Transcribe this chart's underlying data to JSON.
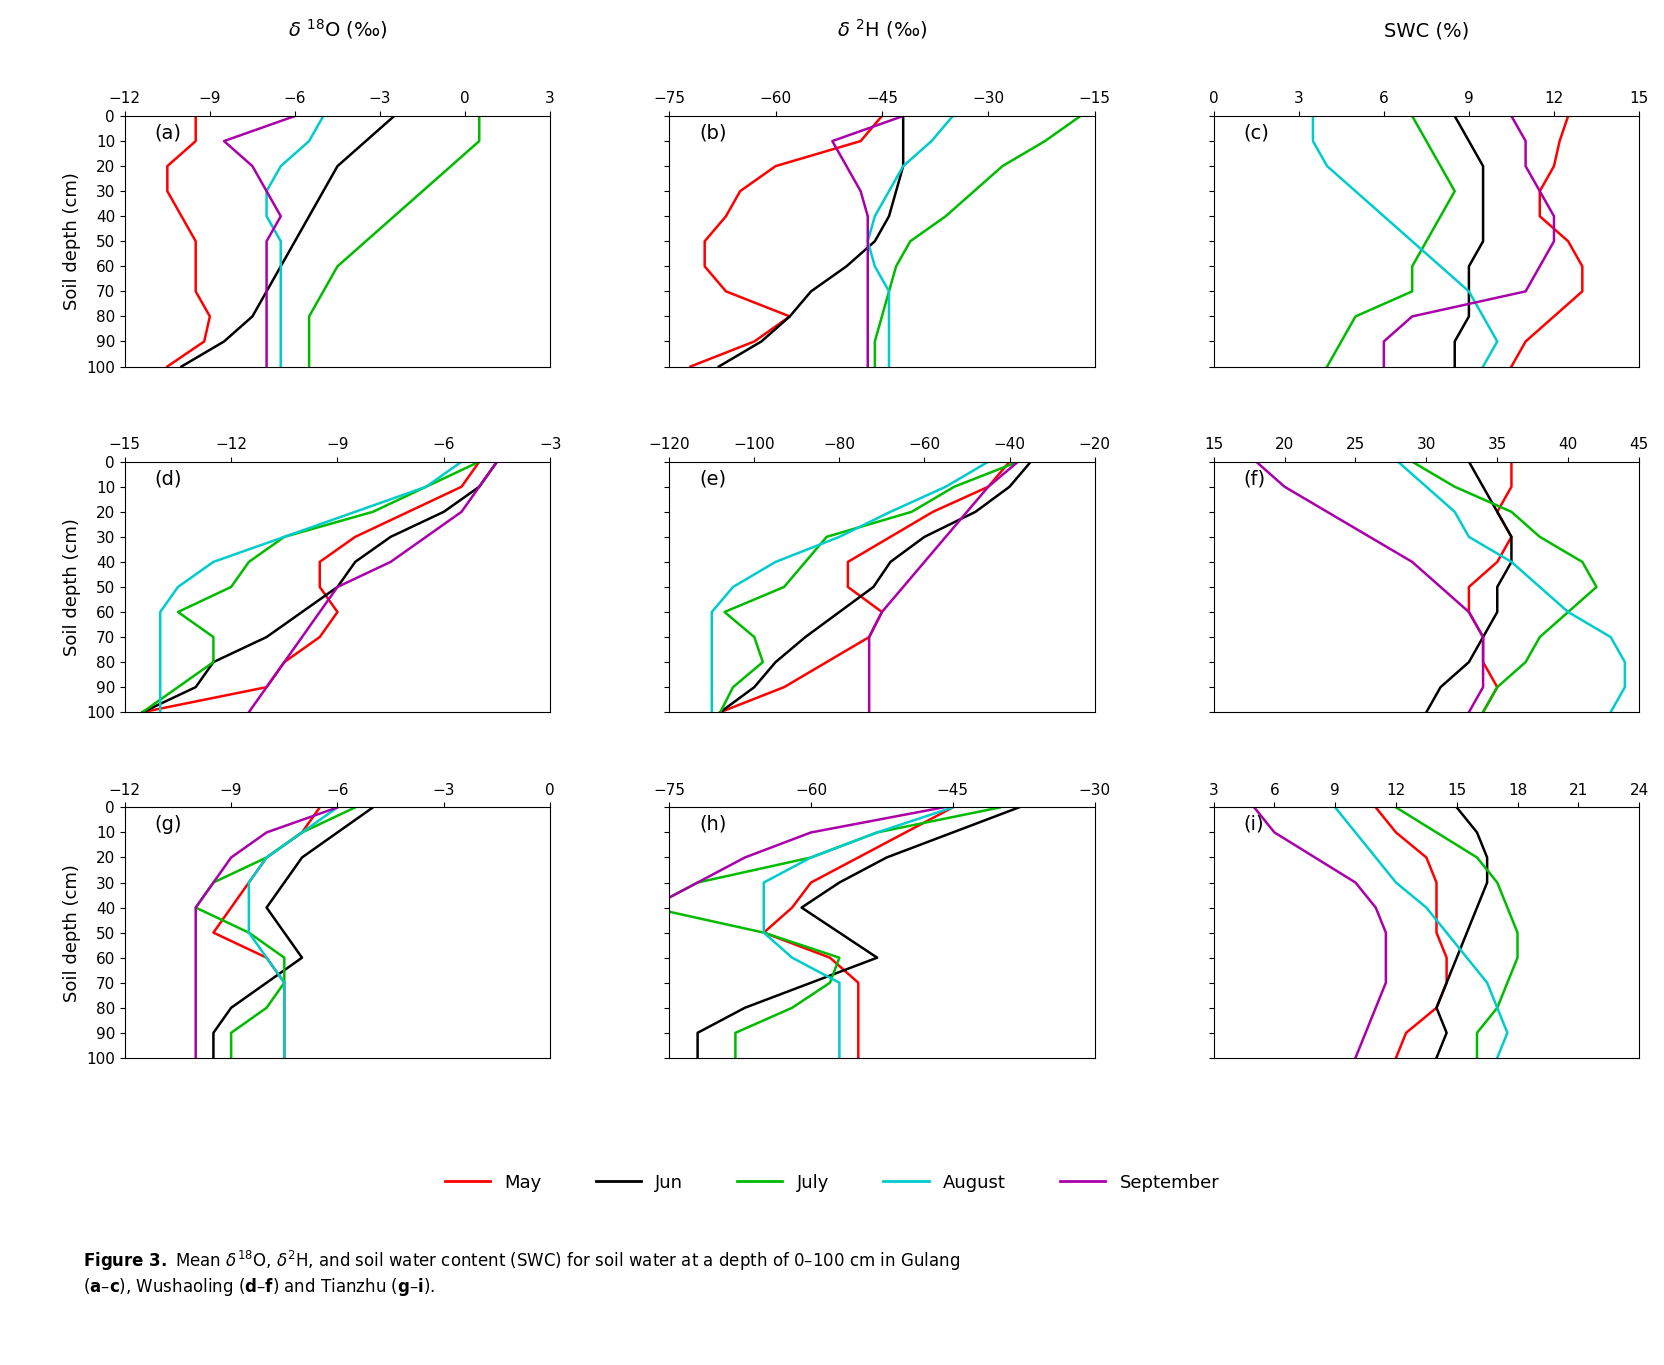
{
  "depths": [
    0,
    10,
    20,
    30,
    40,
    50,
    60,
    70,
    80,
    90,
    100
  ],
  "panel_labels": [
    "(a)",
    "(b)",
    "(c)",
    "(d)",
    "(e)",
    "(f)",
    "(g)",
    "(h)",
    "(i)"
  ],
  "colors": {
    "May": "#ff0000",
    "Jun": "#000000",
    "July": "#00bb00",
    "August": "#00cccc",
    "September": "#aa00aa"
  },
  "legend_labels": [
    "May",
    "Jun",
    "July",
    "August",
    "September"
  ],
  "xlims": [
    [
      [
        -12,
        3
      ],
      [
        -75,
        -15
      ],
      [
        0,
        15
      ]
    ],
    [
      [
        -15,
        -3
      ],
      [
        -120,
        -20
      ],
      [
        15,
        45
      ]
    ],
    [
      [
        -12,
        0
      ],
      [
        -75,
        -30
      ],
      [
        3,
        24
      ]
    ]
  ],
  "xticks": [
    [
      [
        -12,
        -9,
        -6,
        -3,
        0,
        3
      ],
      [
        -75,
        -60,
        -45,
        -30,
        -15
      ],
      [
        0,
        3,
        6,
        9,
        12,
        15
      ]
    ],
    [
      [
        -15,
        -12,
        -9,
        -6,
        -3
      ],
      [
        -120,
        -100,
        -80,
        -60,
        -40,
        -20
      ],
      [
        15,
        20,
        25,
        30,
        35,
        40,
        45
      ]
    ],
    [
      [
        -12,
        -9,
        -6,
        -3,
        0
      ],
      [
        -75,
        -60,
        -45,
        -30
      ],
      [
        3,
        6,
        9,
        12,
        15,
        18,
        21,
        24
      ]
    ]
  ],
  "col_titles": [
    "$\\delta$ $^{18}$O (\\u2030)",
    "$\\delta$ $^{2}$H (\\u2030)",
    "SWC (%)"
  ],
  "data": {
    "a": {
      "May": [
        -9.5,
        -9.5,
        -10.5,
        -10.5,
        -10.0,
        -9.5,
        -9.5,
        -9.5,
        -9.0,
        -9.2,
        -10.5
      ],
      "Jun": [
        -2.5,
        -3.5,
        -4.5,
        -5.0,
        -5.5,
        -6.0,
        -6.5,
        -7.0,
        -7.5,
        -8.5,
        -10.0
      ],
      "July": [
        0.5,
        0.5,
        -0.5,
        -1.5,
        -2.5,
        -3.5,
        -4.5,
        -5.0,
        -5.5,
        -5.5,
        -5.5
      ],
      "August": [
        -5.0,
        -5.5,
        -6.5,
        -7.0,
        -7.0,
        -6.5,
        -6.5,
        -6.5,
        -6.5,
        -6.5,
        -6.5
      ],
      "September": [
        -6.0,
        -8.5,
        -7.5,
        -7.0,
        -6.5,
        -7.0,
        -7.0,
        -7.0,
        -7.0,
        -7.0,
        -7.0
      ]
    },
    "b": {
      "May": [
        -45,
        -48,
        -60,
        -65,
        -67,
        -70,
        -70,
        -67,
        -58,
        -63,
        -72
      ],
      "Jun": [
        -42,
        -42,
        -42,
        -43,
        -44,
        -46,
        -50,
        -55,
        -58,
        -62,
        -68
      ],
      "July": [
        -17,
        -22,
        -28,
        -32,
        -36,
        -41,
        -43,
        -44,
        -45,
        -46,
        -46
      ],
      "August": [
        -35,
        -38,
        -42,
        -44,
        -46,
        -47,
        -46,
        -44,
        -44,
        -44,
        -44
      ],
      "September": [
        -42,
        -52,
        -50,
        -48,
        -47,
        -47,
        -47,
        -47,
        -47,
        -47,
        -47
      ]
    },
    "c": {
      "May": [
        12.5,
        12.2,
        12.0,
        11.5,
        11.5,
        12.5,
        13.0,
        13.0,
        12.0,
        11.0,
        10.5
      ],
      "Jun": [
        8.5,
        9.0,
        9.5,
        9.5,
        9.5,
        9.5,
        9.0,
        9.0,
        9.0,
        8.5,
        8.5
      ],
      "July": [
        7.0,
        7.5,
        8.0,
        8.5,
        8.0,
        7.5,
        7.0,
        7.0,
        5.0,
        4.5,
        4.0
      ],
      "August": [
        3.5,
        3.5,
        4.0,
        5.0,
        6.0,
        7.0,
        8.0,
        9.0,
        9.5,
        10.0,
        9.5
      ],
      "September": [
        10.5,
        11.0,
        11.0,
        11.5,
        12.0,
        12.0,
        11.5,
        11.0,
        7.0,
        6.0,
        6.0
      ]
    },
    "d": {
      "May": [
        -5.0,
        -5.5,
        -7.0,
        -8.5,
        -9.5,
        -9.5,
        -9.0,
        -9.5,
        -10.5,
        -11.0,
        -14.5
      ],
      "Jun": [
        -4.5,
        -5.0,
        -6.0,
        -7.5,
        -8.5,
        -9.0,
        -10.0,
        -11.0,
        -12.5,
        -13.0,
        -14.5
      ],
      "July": [
        -5.0,
        -6.5,
        -8.0,
        -10.5,
        -11.5,
        -12.0,
        -13.5,
        -12.5,
        -12.5,
        -13.5,
        -14.5
      ],
      "August": [
        -5.5,
        -6.5,
        -8.5,
        -10.5,
        -12.5,
        -13.5,
        -14.0,
        -14.0,
        -14.0,
        -14.0,
        -14.0
      ],
      "September": [
        -4.5,
        -5.0,
        -5.5,
        -6.5,
        -7.5,
        -9.0,
        -9.5,
        -10.0,
        -10.5,
        -11.0,
        -11.5
      ]
    },
    "e": {
      "May": [
        -40,
        -45,
        -58,
        -68,
        -78,
        -78,
        -70,
        -73,
        -83,
        -93,
        -108
      ],
      "Jun": [
        -35,
        -40,
        -48,
        -60,
        -68,
        -72,
        -80,
        -88,
        -95,
        -100,
        -108
      ],
      "July": [
        -38,
        -53,
        -63,
        -83,
        -88,
        -93,
        -107,
        -100,
        -98,
        -105,
        -108
      ],
      "August": [
        -45,
        -55,
        -68,
        -80,
        -95,
        -105,
        -110,
        -110,
        -110,
        -110,
        -110
      ],
      "September": [
        -38,
        -45,
        -50,
        -55,
        -60,
        -65,
        -70,
        -73,
        -73,
        -73,
        -73
      ]
    },
    "f": {
      "May": [
        36,
        36,
        35,
        36,
        35,
        33,
        33,
        34,
        34,
        35,
        34
      ],
      "Jun": [
        33,
        34,
        35,
        36,
        36,
        35,
        35,
        34,
        33,
        31,
        30
      ],
      "July": [
        29,
        32,
        36,
        38,
        41,
        42,
        40,
        38,
        37,
        35,
        34
      ],
      "August": [
        28,
        30,
        32,
        33,
        36,
        38,
        40,
        43,
        44,
        44,
        43
      ],
      "September": [
        18,
        20,
        23,
        26,
        29,
        31,
        33,
        34,
        34,
        34,
        33
      ]
    },
    "g": {
      "May": [
        -6.5,
        -7.0,
        -8.0,
        -8.5,
        -9.0,
        -9.5,
        -8.0,
        -7.5,
        -7.5,
        -7.5,
        -7.5
      ],
      "Jun": [
        -5.0,
        -6.0,
        -7.0,
        -7.5,
        -8.0,
        -7.5,
        -7.0,
        -8.0,
        -9.0,
        -9.5,
        -9.5
      ],
      "July": [
        -5.5,
        -7.0,
        -8.0,
        -9.5,
        -10.0,
        -8.5,
        -7.5,
        -7.5,
        -8.0,
        -9.0,
        -9.0
      ],
      "August": [
        -6.0,
        -7.0,
        -8.0,
        -8.5,
        -8.5,
        -8.5,
        -8.0,
        -7.5,
        -7.5,
        -7.5,
        -7.5
      ],
      "September": [
        -6.0,
        -8.0,
        -9.0,
        -9.5,
        -10.0,
        -10.0,
        -10.0,
        -10.0,
        -10.0,
        -10.0,
        -10.0
      ]
    },
    "h": {
      "May": [
        -45,
        -50,
        -55,
        -60,
        -62,
        -65,
        -58,
        -55,
        -55,
        -55,
        -55
      ],
      "Jun": [
        -38,
        -45,
        -52,
        -57,
        -61,
        -57,
        -53,
        -60,
        -67,
        -72,
        -72
      ],
      "July": [
        -40,
        -53,
        -60,
        -72,
        -77,
        -65,
        -57,
        -58,
        -62,
        -68,
        -68
      ],
      "August": [
        -45,
        -53,
        -60,
        -65,
        -65,
        -65,
        -62,
        -57,
        -57,
        -57,
        -57
      ],
      "September": [
        -46,
        -60,
        -67,
        -72,
        -77,
        -77,
        -77,
        -77,
        -77,
        -77,
        -77
      ]
    },
    "i": {
      "May": [
        11.0,
        12.0,
        13.5,
        14.0,
        14.0,
        14.0,
        14.5,
        14.5,
        14.0,
        12.5,
        12.0
      ],
      "Jun": [
        15.0,
        16.0,
        16.5,
        16.5,
        16.0,
        15.5,
        15.0,
        14.5,
        14.0,
        14.5,
        14.0
      ],
      "July": [
        12.0,
        14.0,
        16.0,
        17.0,
        17.5,
        18.0,
        18.0,
        17.5,
        17.0,
        16.0,
        16.0
      ],
      "August": [
        9.0,
        10.0,
        11.0,
        12.0,
        13.5,
        14.5,
        15.5,
        16.5,
        17.0,
        17.5,
        17.0
      ],
      "September": [
        5.0,
        6.0,
        8.0,
        10.0,
        11.0,
        11.5,
        11.5,
        11.5,
        11.0,
        10.5,
        10.0
      ]
    }
  }
}
